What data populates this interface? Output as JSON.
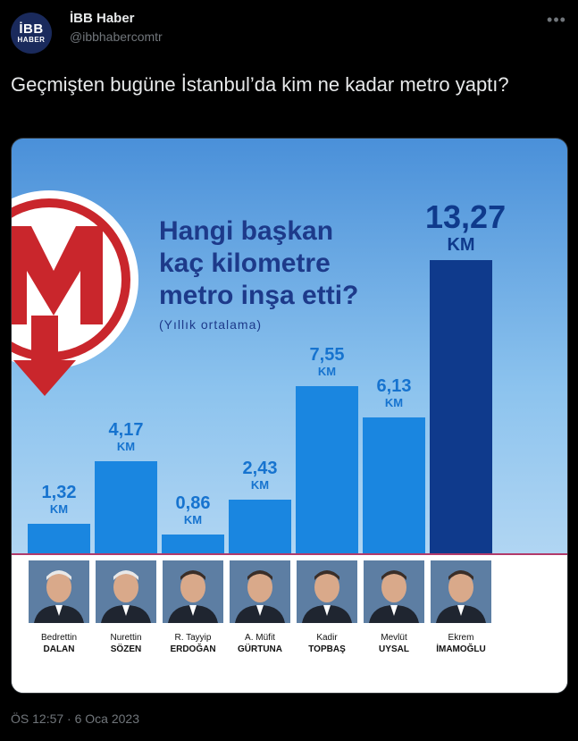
{
  "account": {
    "avatar_line1": "İBB",
    "avatar_line2": "HABER",
    "name": "İBB Haber",
    "handle": "@ibbhabercomtr"
  },
  "tweet": {
    "text": "Geçmişten bugüne İstanbul’da kim ne kadar metro yaptı?",
    "timestamp": "ÖS 12:57 · 6 Oca 2023"
  },
  "icons": {
    "more": "more-horizontal-icon",
    "logo": "metro-m-logo"
  },
  "colors": {
    "bar_light": "#1a86e0",
    "bar_dark": "#0f3a8c",
    "headline": "#1d3a8a",
    "value_text": "#1673cf"
  },
  "infographic": {
    "headline_lines": [
      "Hangi başkan",
      "kaç kilometre",
      "metro inşa etti?"
    ],
    "subtitle": "(Yıllık ortalama)",
    "unit": "KM"
  },
  "chart_data": {
    "type": "bar",
    "categories": [
      "Bedrettin DALAN",
      "Nurettin SÖZEN",
      "R. Tayyip ERDOĞAN",
      "A. Müfit GÜRTUNA",
      "Kadir TOPBAŞ",
      "Mevlüt UYSAL",
      "Ekrem İMAMOĞLU"
    ],
    "first_names": [
      "Bedrettin",
      "Nurettin",
      "R. Tayyip",
      "A. Müfit",
      "Kadir",
      "Mevlüt",
      "Ekrem"
    ],
    "last_names": [
      "DALAN",
      "SÖZEN",
      "ERDOĞAN",
      "GÜRTUNA",
      "TOPBAŞ",
      "UYSAL",
      "İMAMOĞLU"
    ],
    "values": [
      1.32,
      4.17,
      0.86,
      2.43,
      7.55,
      6.13,
      13.27
    ],
    "value_labels": [
      "1,32",
      "4,17",
      "0,86",
      "2,43",
      "7,55",
      "6,13",
      "13,27"
    ],
    "unit": "KM",
    "highlight_index": 6,
    "ylim": [
      0,
      13.27
    ],
    "grid": false
  }
}
